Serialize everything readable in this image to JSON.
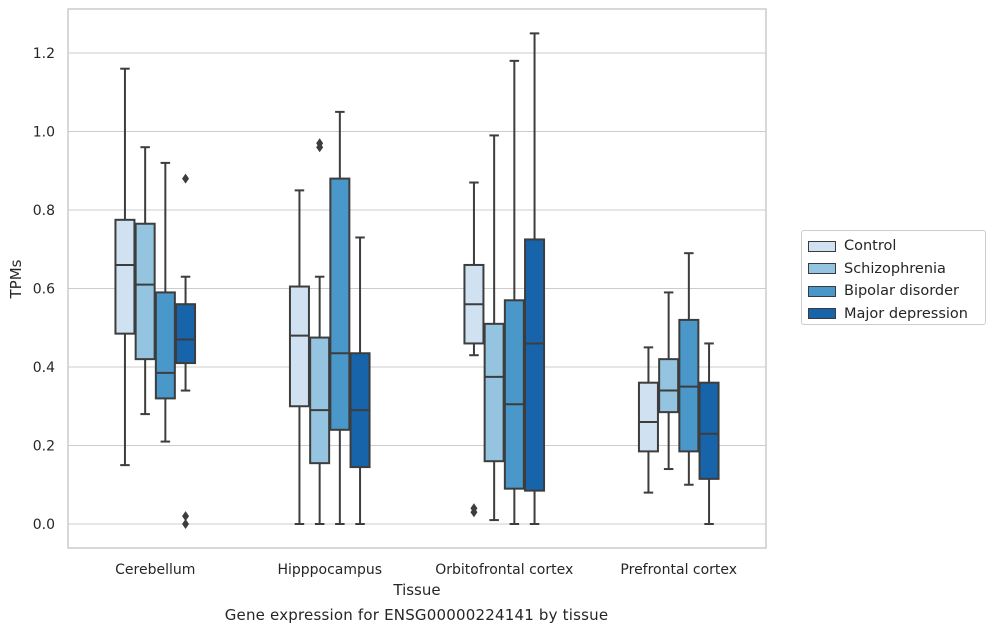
{
  "caption": "Gene expression for ENSG00000224141 by tissue",
  "chart_data": {
    "type": "boxplot",
    "title": "",
    "xlabel": "Tissue",
    "ylabel": "TPMs",
    "ylim": [
      -0.06,
      1.32
    ],
    "yticks": [
      "0.0",
      "0.2",
      "0.4",
      "0.6",
      "0.8",
      "1.0",
      "1.2"
    ],
    "grid": "horizontal",
    "legend_position": "center-right",
    "categories": [
      "Cerebellum",
      "Hipppocampus",
      "Orbitofrontal cortex",
      "Prefrontal cortex"
    ],
    "series": [
      {
        "name": "Control",
        "color": "#d0e1f2",
        "boxes": [
          {
            "whisker_low": 0.15,
            "q1": 0.485,
            "median": 0.66,
            "q3": 0.775,
            "whisker_high": 1.16,
            "outliers": []
          },
          {
            "whisker_low": 0.0,
            "q1": 0.3,
            "median": 0.48,
            "q3": 0.605,
            "whisker_high": 0.85,
            "outliers": []
          },
          {
            "whisker_low": 0.43,
            "q1": 0.46,
            "median": 0.56,
            "q3": 0.66,
            "whisker_high": 0.87,
            "outliers": [
              0.03,
              0.04
            ]
          },
          {
            "whisker_low": 0.08,
            "q1": 0.185,
            "median": 0.26,
            "q3": 0.36,
            "whisker_high": 0.45,
            "outliers": []
          }
        ]
      },
      {
        "name": "Schizophrenia",
        "color": "#94c4df",
        "boxes": [
          {
            "whisker_low": 0.28,
            "q1": 0.42,
            "median": 0.61,
            "q3": 0.765,
            "whisker_high": 0.96,
            "outliers": []
          },
          {
            "whisker_low": 0.0,
            "q1": 0.155,
            "median": 0.29,
            "q3": 0.475,
            "whisker_high": 0.63,
            "outliers": [
              0.96,
              0.97
            ]
          },
          {
            "whisker_low": 0.01,
            "q1": 0.16,
            "median": 0.375,
            "q3": 0.51,
            "whisker_high": 0.99,
            "outliers": []
          },
          {
            "whisker_low": 0.14,
            "q1": 0.285,
            "median": 0.34,
            "q3": 0.42,
            "whisker_high": 0.59,
            "outliers": []
          }
        ]
      },
      {
        "name": "Bipolar disorder",
        "color": "#4a98c9",
        "boxes": [
          {
            "whisker_low": 0.21,
            "q1": 0.32,
            "median": 0.385,
            "q3": 0.59,
            "whisker_high": 0.92,
            "outliers": []
          },
          {
            "whisker_low": 0.0,
            "q1": 0.24,
            "median": 0.435,
            "q3": 0.88,
            "whisker_high": 1.05,
            "outliers": []
          },
          {
            "whisker_low": 0.0,
            "q1": 0.09,
            "median": 0.305,
            "q3": 0.57,
            "whisker_high": 1.18,
            "outliers": []
          },
          {
            "whisker_low": 0.1,
            "q1": 0.185,
            "median": 0.35,
            "q3": 0.52,
            "whisker_high": 0.69,
            "outliers": []
          }
        ]
      },
      {
        "name": "Major depression",
        "color": "#1764ab",
        "boxes": [
          {
            "whisker_low": 0.34,
            "q1": 0.41,
            "median": 0.47,
            "q3": 0.56,
            "whisker_high": 0.63,
            "outliers": [
              0.88,
              0.0,
              0.02
            ]
          },
          {
            "whisker_low": 0.0,
            "q1": 0.145,
            "median": 0.29,
            "q3": 0.435,
            "whisker_high": 0.73,
            "outliers": []
          },
          {
            "whisker_low": 0.0,
            "q1": 0.085,
            "median": 0.46,
            "q3": 0.725,
            "whisker_high": 1.25,
            "outliers": []
          },
          {
            "whisker_low": 0.0,
            "q1": 0.115,
            "median": 0.23,
            "q3": 0.36,
            "whisker_high": 0.46,
            "outliers": []
          }
        ]
      }
    ]
  }
}
